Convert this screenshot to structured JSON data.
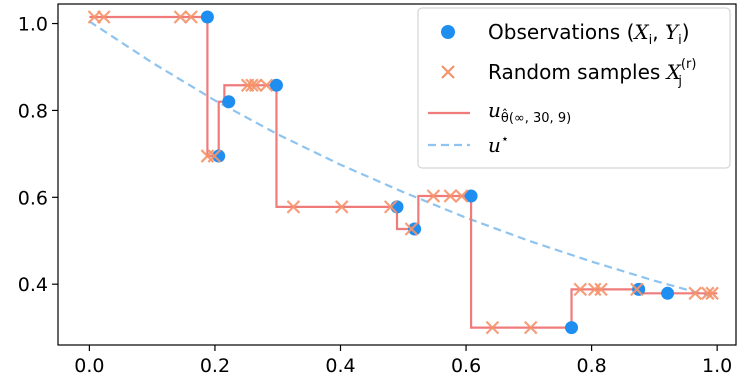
{
  "chart_data": {
    "type": "scatter",
    "xlim": [
      -0.05,
      1.03
    ],
    "ylim": [
      0.26,
      1.045
    ],
    "xticks": [
      0.0,
      0.2,
      0.4,
      0.6,
      0.8,
      1.0
    ],
    "xtick_labels": [
      "0.0",
      "0.2",
      "0.4",
      "0.6",
      "0.8",
      "1.0"
    ],
    "yticks": [
      0.4,
      0.6,
      0.8,
      1.0
    ],
    "ytick_labels": [
      "0.4",
      "0.6",
      "0.8",
      "1.0"
    ],
    "grid": false,
    "legend_position": "top-right",
    "series": [
      {
        "name": "Observations (X_i, Y_i)",
        "kind": "scatter",
        "marker": "circle",
        "color": "#1f8ef1",
        "x": [
          0.188,
          0.206,
          0.222,
          0.298,
          0.49,
          0.518,
          0.608,
          0.768,
          0.875,
          0.921
        ],
        "y": [
          1.015,
          0.695,
          0.82,
          0.858,
          0.578,
          0.527,
          0.603,
          0.3,
          0.388,
          0.379
        ]
      },
      {
        "name": "Random samples X_j^(r)",
        "kind": "scatter",
        "marker": "x",
        "color": "#f5936a",
        "x": [
          0.008,
          0.023,
          0.145,
          0.162,
          0.188,
          0.199,
          0.252,
          0.259,
          0.265,
          0.282,
          0.325,
          0.402,
          0.48,
          0.513,
          0.548,
          0.575,
          0.593,
          0.642,
          0.703,
          0.782,
          0.805,
          0.815,
          0.872,
          0.965,
          0.985,
          0.992
        ],
        "y": [
          1.015,
          1.015,
          1.015,
          1.015,
          0.695,
          0.695,
          0.858,
          0.858,
          0.858,
          0.858,
          0.578,
          0.578,
          0.578,
          0.527,
          0.603,
          0.603,
          0.603,
          0.3,
          0.3,
          0.388,
          0.388,
          0.388,
          0.388,
          0.379,
          0.379,
          0.379
        ]
      },
      {
        "name": "u_{θ̂(∞,30,9)}",
        "kind": "step",
        "color": "#f07b7b",
        "x": [
          0.0,
          0.188,
          0.188,
          0.206,
          0.206,
          0.215,
          0.215,
          0.23,
          0.23,
          0.298,
          0.298,
          0.49,
          0.49,
          0.512,
          0.512,
          0.524,
          0.524,
          0.608,
          0.608,
          0.768,
          0.768,
          0.778,
          0.778,
          0.875,
          0.875,
          1.0
        ],
        "y": [
          1.015,
          1.015,
          0.695,
          0.695,
          0.82,
          0.82,
          0.858,
          0.858,
          0.858,
          0.858,
          0.578,
          0.578,
          0.527,
          0.527,
          0.527,
          0.527,
          0.603,
          0.603,
          0.3,
          0.3,
          0.388,
          0.388,
          0.388,
          0.388,
          0.379,
          0.379
        ]
      },
      {
        "name": "u*",
        "kind": "line",
        "style": "dashed",
        "color": "#8ec4ef",
        "x": [
          0.0,
          0.1,
          0.2,
          0.3,
          0.4,
          0.5,
          0.6,
          0.7,
          0.8,
          0.9,
          1.0
        ],
        "y": [
          1.005,
          0.91,
          0.823,
          0.745,
          0.675,
          0.612,
          0.553,
          0.5,
          0.452,
          0.408,
          0.368
        ]
      }
    ]
  },
  "legend": {
    "obs_label_prefix": "Observations (",
    "obs_x": "X",
    "obs_x_sub": "i",
    "obs_sep": ", ",
    "obs_y": "Y",
    "obs_y_sub": "i",
    "obs_label_suffix": ")",
    "samples_label_prefix": "Random samples ",
    "samples_var": "X",
    "samples_sub": "j",
    "samples_sup": "(r)",
    "fit_var": "u",
    "fit_sub": "θ̂(∞, 30, 9)",
    "truth_var": "u",
    "truth_sup": "⋆"
  }
}
